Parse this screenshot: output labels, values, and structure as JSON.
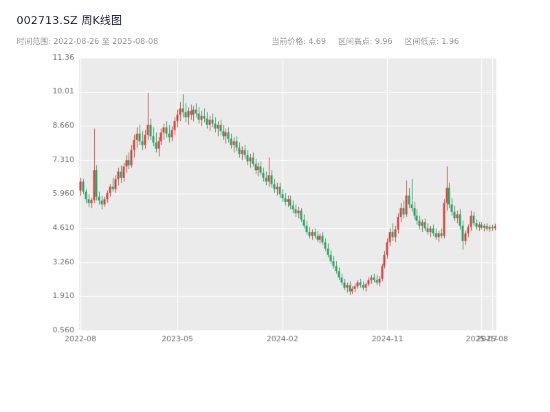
{
  "header": {
    "title": "002713.SZ 周K线图",
    "subtitle": "时间范围: 2022-08-26 至 2025-08-08",
    "stats_items": [
      "当前价格: 4.69",
      "区间高点: 9.96",
      "区间低点: 1.96"
    ]
  },
  "chart_data": {
    "type": "candlestick",
    "symbol": "002713.SZ",
    "interval": "weekly",
    "title": "002713.SZ 周K线图",
    "start_date": "2022-08-26",
    "end_date": "2025-08-08",
    "current_price": 4.69,
    "range_high": 9.96,
    "range_low": 1.96,
    "up_color": "#cf463c",
    "down_color": "#2e9e62",
    "plot_bg": "#ebebeb",
    "grid_color": "#ffffff",
    "axis_label_color": "#6f6f6f",
    "y_range": [
      0.56,
      11.36
    ],
    "y_ticks": [
      {
        "value": 11.36,
        "label": "11.36"
      },
      {
        "value": 10.01,
        "label": "10.01"
      },
      {
        "value": 8.66,
        "label": "8.660"
      },
      {
        "value": 7.31,
        "label": "7.310"
      },
      {
        "value": 5.96,
        "label": "5.960"
      },
      {
        "value": 4.61,
        "label": "4.610"
      },
      {
        "value": 3.26,
        "label": "3.260"
      },
      {
        "value": 1.91,
        "label": "1.910"
      },
      {
        "value": 0.56,
        "label": "0.560"
      }
    ],
    "x_ticks": [
      {
        "index": 0,
        "label": "2022-08"
      },
      {
        "index": 36,
        "label": "2023-05"
      },
      {
        "index": 75,
        "label": "2024-02"
      },
      {
        "index": 114,
        "label": "2024-11"
      },
      {
        "index": 149,
        "label": "2025-07"
      },
      {
        "index": 153,
        "label": "2025-08"
      }
    ],
    "ohlc": [
      [
        6.1,
        6.6,
        5.9,
        6.45
      ],
      [
        6.45,
        6.55,
        5.95,
        6.05
      ],
      [
        6.05,
        6.15,
        5.6,
        5.75
      ],
      [
        5.75,
        5.95,
        5.45,
        5.6
      ],
      [
        5.6,
        5.8,
        5.4,
        5.72
      ],
      [
        5.72,
        8.55,
        5.6,
        6.9
      ],
      [
        6.9,
        7.1,
        5.7,
        5.85
      ],
      [
        5.85,
        6.05,
        5.55,
        5.7
      ],
      [
        5.7,
        5.9,
        5.35,
        5.55
      ],
      [
        5.55,
        5.85,
        5.45,
        5.75
      ],
      [
        5.75,
        6.1,
        5.6,
        6.0
      ],
      [
        6.0,
        6.35,
        5.85,
        6.25
      ],
      [
        6.25,
        6.6,
        6.05,
        6.15
      ],
      [
        6.15,
        6.7,
        6.0,
        6.55
      ],
      [
        6.55,
        7.0,
        6.3,
        6.85
      ],
      [
        6.85,
        7.1,
        6.4,
        6.6
      ],
      [
        6.6,
        7.2,
        6.45,
        7.05
      ],
      [
        7.05,
        7.5,
        6.8,
        7.3
      ],
      [
        7.3,
        7.6,
        6.95,
        7.1
      ],
      [
        7.1,
        7.9,
        7.0,
        7.7
      ],
      [
        7.7,
        8.3,
        7.4,
        8.1
      ],
      [
        8.1,
        8.6,
        7.8,
        8.35
      ],
      [
        8.35,
        8.7,
        7.9,
        8.05
      ],
      [
        8.05,
        8.45,
        7.7,
        7.9
      ],
      [
        7.9,
        8.5,
        7.75,
        8.3
      ],
      [
        8.3,
        9.96,
        8.1,
        8.7
      ],
      [
        8.7,
        8.95,
        8.1,
        8.25
      ],
      [
        8.25,
        8.6,
        7.85,
        8.0
      ],
      [
        8.0,
        8.4,
        7.6,
        7.75
      ],
      [
        7.75,
        8.2,
        7.45,
        8.05
      ],
      [
        8.05,
        8.55,
        7.9,
        8.4
      ],
      [
        8.4,
        8.75,
        8.1,
        8.6
      ],
      [
        8.6,
        8.85,
        8.2,
        8.35
      ],
      [
        8.35,
        8.7,
        8.0,
        8.2
      ],
      [
        8.2,
        8.65,
        8.05,
        8.5
      ],
      [
        8.5,
        9.0,
        8.3,
        8.85
      ],
      [
        8.85,
        9.3,
        8.6,
        9.1
      ],
      [
        9.1,
        9.6,
        8.85,
        9.35
      ],
      [
        9.35,
        9.92,
        9.0,
        9.2
      ],
      [
        9.2,
        9.55,
        8.8,
        9.0
      ],
      [
        9.0,
        9.4,
        8.7,
        9.25
      ],
      [
        9.25,
        9.5,
        8.9,
        9.1
      ],
      [
        9.1,
        9.45,
        8.85,
        9.3
      ],
      [
        9.3,
        9.55,
        9.0,
        9.15
      ],
      [
        9.15,
        9.4,
        8.75,
        8.9
      ],
      [
        8.9,
        9.25,
        8.65,
        9.05
      ],
      [
        9.05,
        9.35,
        8.8,
        8.95
      ],
      [
        8.95,
        9.2,
        8.55,
        8.7
      ],
      [
        8.7,
        9.05,
        8.45,
        8.9
      ],
      [
        8.9,
        9.15,
        8.6,
        8.75
      ],
      [
        8.75,
        9.0,
        8.4,
        8.55
      ],
      [
        8.55,
        8.85,
        8.25,
        8.7
      ],
      [
        8.7,
        8.9,
        8.3,
        8.45
      ],
      [
        8.45,
        8.7,
        8.1,
        8.25
      ],
      [
        8.25,
        8.55,
        7.95,
        8.4
      ],
      [
        8.4,
        8.6,
        8.0,
        8.15
      ],
      [
        8.15,
        8.35,
        7.75,
        7.9
      ],
      [
        7.9,
        8.2,
        7.6,
        8.05
      ],
      [
        8.05,
        8.25,
        7.65,
        7.8
      ],
      [
        7.8,
        8.0,
        7.4,
        7.55
      ],
      [
        7.55,
        7.85,
        7.3,
        7.7
      ],
      [
        7.7,
        7.9,
        7.35,
        7.5
      ],
      [
        7.5,
        7.7,
        7.1,
        7.25
      ],
      [
        7.25,
        7.55,
        7.0,
        7.4
      ],
      [
        7.4,
        7.6,
        7.05,
        7.15
      ],
      [
        7.15,
        7.35,
        6.75,
        6.9
      ],
      [
        6.9,
        7.2,
        6.65,
        7.05
      ],
      [
        7.05,
        7.25,
        6.7,
        6.8
      ],
      [
        6.8,
        7.0,
        6.45,
        6.6
      ],
      [
        6.6,
        6.85,
        6.3,
        6.45
      ],
      [
        6.45,
        7.4,
        6.25,
        6.7
      ],
      [
        6.7,
        6.9,
        6.2,
        6.35
      ],
      [
        6.35,
        6.55,
        6.0,
        6.15
      ],
      [
        6.15,
        6.4,
        5.9,
        6.25
      ],
      [
        6.25,
        6.4,
        5.8,
        5.95
      ],
      [
        5.95,
        6.15,
        5.65,
        5.8
      ],
      [
        5.8,
        6.0,
        5.5,
        5.65
      ],
      [
        5.65,
        5.9,
        5.45,
        5.75
      ],
      [
        5.75,
        5.9,
        5.35,
        5.5
      ],
      [
        5.5,
        5.7,
        5.2,
        5.35
      ],
      [
        5.35,
        5.55,
        5.05,
        5.2
      ],
      [
        5.2,
        5.45,
        5.0,
        5.3
      ],
      [
        5.3,
        5.4,
        4.85,
        4.95
      ],
      [
        4.95,
        5.15,
        4.6,
        4.7
      ],
      [
        4.7,
        4.9,
        4.35,
        4.45
      ],
      [
        4.45,
        4.65,
        4.2,
        4.3
      ],
      [
        4.3,
        4.55,
        4.15,
        4.45
      ],
      [
        4.45,
        4.6,
        4.2,
        4.3
      ],
      [
        4.3,
        4.5,
        4.05,
        4.15
      ],
      [
        4.15,
        4.4,
        4.0,
        4.3
      ],
      [
        4.3,
        4.45,
        3.95,
        4.05
      ],
      [
        4.05,
        4.2,
        3.7,
        3.8
      ],
      [
        3.8,
        4.0,
        3.45,
        3.55
      ],
      [
        3.55,
        3.75,
        3.2,
        3.3
      ],
      [
        3.3,
        3.5,
        3.0,
        3.1
      ],
      [
        3.1,
        3.3,
        2.8,
        2.9
      ],
      [
        2.9,
        3.05,
        2.55,
        2.65
      ],
      [
        2.65,
        2.8,
        2.35,
        2.45
      ],
      [
        2.45,
        2.6,
        2.15,
        2.25
      ],
      [
        2.25,
        2.45,
        2.05,
        2.35
      ],
      [
        2.35,
        2.5,
        1.96,
        2.1
      ],
      [
        2.1,
        2.3,
        2.0,
        2.2
      ],
      [
        2.2,
        2.4,
        2.08,
        2.3
      ],
      [
        2.3,
        2.55,
        2.2,
        2.45
      ],
      [
        2.45,
        2.6,
        2.25,
        2.35
      ],
      [
        2.35,
        2.5,
        2.15,
        2.25
      ],
      [
        2.25,
        2.45,
        2.1,
        2.38
      ],
      [
        2.38,
        2.65,
        2.3,
        2.55
      ],
      [
        2.55,
        2.75,
        2.4,
        2.65
      ],
      [
        2.65,
        2.8,
        2.45,
        2.55
      ],
      [
        2.55,
        2.75,
        2.35,
        2.45
      ],
      [
        2.45,
        2.7,
        2.3,
        2.6
      ],
      [
        2.6,
        3.2,
        2.5,
        3.1
      ],
      [
        3.1,
        3.7,
        3.0,
        3.55
      ],
      [
        3.55,
        4.2,
        3.4,
        4.05
      ],
      [
        4.05,
        4.6,
        3.9,
        4.45
      ],
      [
        4.45,
        4.8,
        4.1,
        4.25
      ],
      [
        4.25,
        4.7,
        4.05,
        4.55
      ],
      [
        4.55,
        5.2,
        4.4,
        5.05
      ],
      [
        5.05,
        5.6,
        4.85,
        5.4
      ],
      [
        5.4,
        5.7,
        5.0,
        5.15
      ],
      [
        5.15,
        6.5,
        5.05,
        5.9
      ],
      [
        5.9,
        6.2,
        5.4,
        5.55
      ],
      [
        5.55,
        6.55,
        5.25,
        5.4
      ],
      [
        5.4,
        5.65,
        4.95,
        5.1
      ],
      [
        5.1,
        5.35,
        4.75,
        4.9
      ],
      [
        4.9,
        5.1,
        4.55,
        4.7
      ],
      [
        4.7,
        4.95,
        4.45,
        4.85
      ],
      [
        4.85,
        5.0,
        4.5,
        4.6
      ],
      [
        4.6,
        4.8,
        4.35,
        4.45
      ],
      [
        4.45,
        4.7,
        4.25,
        4.6
      ],
      [
        4.6,
        4.75,
        4.3,
        4.4
      ],
      [
        4.4,
        4.6,
        4.15,
        4.25
      ],
      [
        4.25,
        4.5,
        4.05,
        4.4
      ],
      [
        4.4,
        4.6,
        4.2,
        4.3
      ],
      [
        4.3,
        5.75,
        4.2,
        5.6
      ],
      [
        5.6,
        7.05,
        5.3,
        6.2
      ],
      [
        6.2,
        6.4,
        5.4,
        5.55
      ],
      [
        5.55,
        5.8,
        5.1,
        5.25
      ],
      [
        5.25,
        5.5,
        4.9,
        5.0
      ],
      [
        5.0,
        5.3,
        4.8,
        5.15
      ],
      [
        5.15,
        5.35,
        4.55,
        4.7
      ],
      [
        4.7,
        4.9,
        3.75,
        4.1
      ],
      [
        4.1,
        4.5,
        3.95,
        4.4
      ],
      [
        4.4,
        4.75,
        4.25,
        4.65
      ],
      [
        4.65,
        5.3,
        4.5,
        5.1
      ],
      [
        5.1,
        5.25,
        4.7,
        4.8
      ],
      [
        4.8,
        4.95,
        4.55,
        4.65
      ],
      [
        4.65,
        4.85,
        4.5,
        4.75
      ],
      [
        4.75,
        4.85,
        4.55,
        4.62
      ],
      [
        4.62,
        4.78,
        4.48,
        4.7
      ],
      [
        4.7,
        4.8,
        4.5,
        4.58
      ],
      [
        4.58,
        4.72,
        4.45,
        4.65
      ],
      [
        4.65,
        4.75,
        4.5,
        4.6
      ],
      [
        4.6,
        4.78,
        4.52,
        4.69
      ]
    ]
  }
}
